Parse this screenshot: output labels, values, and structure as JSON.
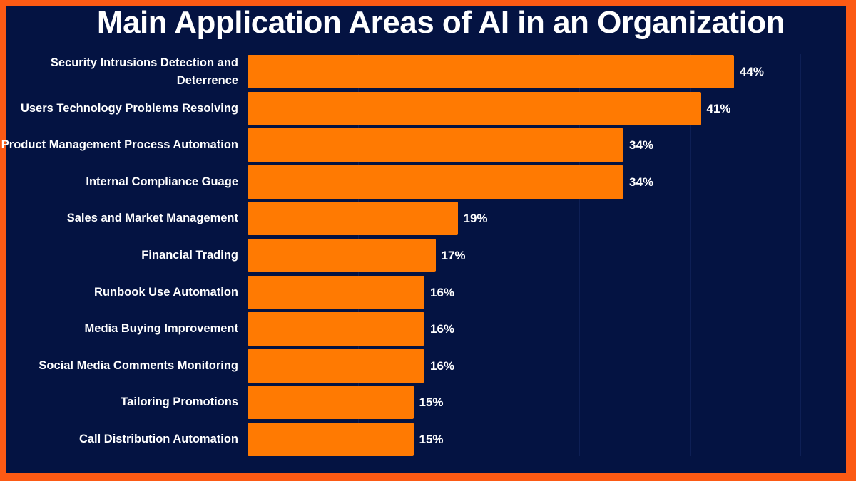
{
  "title": "Main Application Areas of AI in an Organization",
  "colors": {
    "border": "#fc5a14",
    "background": "#041342",
    "bar": "#ff7a02",
    "text": "#ffffff"
  },
  "chart_data": {
    "type": "bar",
    "orientation": "horizontal",
    "title": "Main Application Areas of AI in an Organization",
    "xlabel": "",
    "ylabel": "",
    "xlim": [
      0,
      50
    ],
    "grid": true,
    "legend": null,
    "categories": [
      "Security Intrusions Detection and Deterrence",
      "Users Technology Problems Resolving",
      "Product Management Process Automation",
      "Internal Compliance Guage",
      "Sales and Market Management",
      "Financial Trading",
      "Runbook Use Automation",
      "Media Buying Improvement",
      "Social Media Comments Monitoring",
      "Tailoring Promotions",
      "Call Distribution Automation"
    ],
    "values": [
      44,
      41,
      34,
      34,
      19,
      17,
      16,
      16,
      16,
      15,
      15
    ],
    "data_labels": [
      "44%",
      "41%",
      "34%",
      "34%",
      "19%",
      "17%",
      "16%",
      "16%",
      "16%",
      "15%",
      "15%"
    ],
    "unit": "%"
  },
  "bars": [
    {
      "label": "Security Intrusions Detection and Deterrence",
      "value_label": "44%"
    },
    {
      "label": "Users Technology Problems Resolving",
      "value_label": "41%"
    },
    {
      "label": "Product Management Process Automation",
      "value_label": "34%"
    },
    {
      "label": "Internal Compliance Guage",
      "value_label": "34%"
    },
    {
      "label": "Sales and Market Management",
      "value_label": "19%"
    },
    {
      "label": "Financial Trading",
      "value_label": "17%"
    },
    {
      "label": "Runbook Use Automation",
      "value_label": "16%"
    },
    {
      "label": "Media Buying Improvement",
      "value_label": "16%"
    },
    {
      "label": "Social Media Comments Monitoring",
      "value_label": "16%"
    },
    {
      "label": "Tailoring Promotions",
      "value_label": "15%"
    },
    {
      "label": "Call Distribution Automation",
      "value_label": "15%"
    }
  ]
}
